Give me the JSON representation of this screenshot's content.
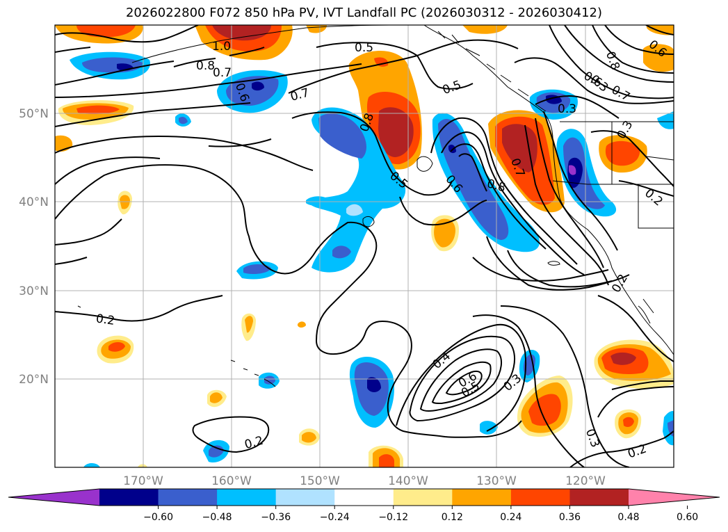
{
  "title": "2026022800 F072 850 hPa PV, IVT Landfall PC (2026030312 - 2026030412)",
  "lat_labels": [
    "50°N",
    "40°N",
    "30°N",
    "20°N"
  ],
  "lon_labels": [
    "170°W",
    "160°W",
    "150°W",
    "140°W",
    "130°W",
    "120°W"
  ],
  "colorbar": {
    "tick_labels": [
      "−0.60",
      "−0.48",
      "−0.36",
      "−0.24",
      "−0.12",
      "0.12",
      "0.24",
      "0.36",
      "0.48",
      "0.60"
    ],
    "colors": [
      "#9932cc",
      "#00008b",
      "#3a5fcd",
      "#00bfff",
      "#b0e2ff",
      "#ffffff",
      "#ffec8b",
      "#ffa500",
      "#ff4500",
      "#b22222",
      "#ff82ab"
    ]
  },
  "contour_labels": [
    "1.0",
    "0.5",
    "0.8",
    "0.7",
    "0.6",
    "0.7",
    "0.5",
    "0.8",
    "0.3",
    "0.5",
    "0.6",
    "0.8",
    "0.7",
    "0.6",
    "0.8",
    "0.7",
    "0.2",
    "0.4",
    "0.6",
    "0.5",
    "0.3",
    "0.2",
    "0.2",
    "0.3",
    "0.2",
    "0.2",
    "0.3",
    "0.6",
    "0.3"
  ],
  "chart_data": {
    "type": "map",
    "title": "2026022800 F072 850 hPa PV, IVT Landfall PC (2026030312 - 2026030412)",
    "field_shaded": "850 hPa PV anomaly (IVT landfall PC regression)",
    "field_contoured": "850 hPa PV",
    "extent": {
      "lon": [
        -180,
        -110
      ],
      "lat": [
        10,
        60
      ]
    },
    "color_levels": [
      -0.6,
      -0.48,
      -0.36,
      -0.24,
      -0.12,
      0.12,
      0.24,
      0.36,
      0.48,
      0.6
    ],
    "extend": "both",
    "contour_levels_labeled": [
      0.2,
      0.3,
      0.4,
      0.5,
      0.6,
      0.7,
      0.8,
      1.0
    ]
  }
}
